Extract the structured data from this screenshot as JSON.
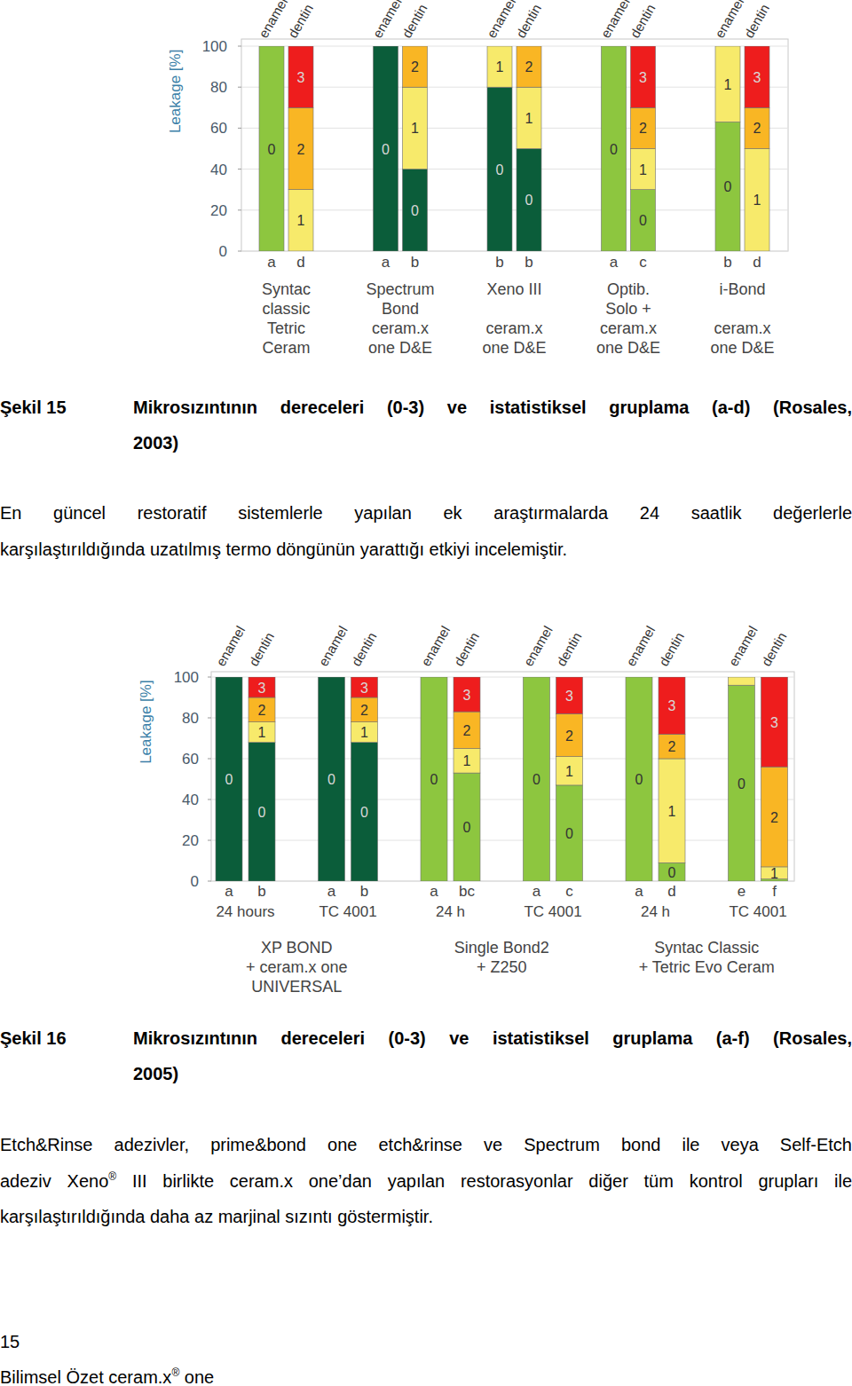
{
  "chart_data": [
    {
      "type": "bar",
      "stacked": true,
      "grid": true,
      "ylabel": "Leakage [%]",
      "ylim": [
        0,
        100
      ],
      "yticks": [
        0,
        20,
        40,
        60,
        80,
        100
      ],
      "categories": [
        "a",
        "d",
        "a",
        "b",
        "b",
        "b",
        "a",
        "c",
        "b",
        "d"
      ],
      "bar_labels": [
        "enamel",
        "dentin",
        "enamel",
        "dentin",
        "enamel",
        "dentin",
        "enamel",
        "dentin",
        "enamel",
        "dentin"
      ],
      "groups": [
        {
          "lines": [
            "Syntac",
            "classic",
            "Tetric",
            "Ceram"
          ],
          "size": 2
        },
        {
          "lines": [
            "Spectrum",
            "Bond",
            "ceram.x",
            "one D&E"
          ],
          "size": 2
        },
        {
          "lines": [
            "Xeno III",
            "",
            "ceram.x",
            "one D&E"
          ],
          "size": 2
        },
        {
          "lines": [
            "Optib.",
            "Solo +",
            "ceram.x",
            "one D&E"
          ],
          "size": 2
        },
        {
          "lines": [
            "i-Bond",
            "",
            "ceram.x",
            "one D&E"
          ],
          "size": 2
        }
      ],
      "series": [
        {
          "name": "0",
          "colors": [
            "#8dc63f",
            "#8dc63f",
            "#0b5d3a",
            "#0b5d3a",
            "#0b5d3a",
            "#0b5d3a",
            "#8dc63f",
            "#8dc63f",
            "#8dc63f",
            "#8dc63f"
          ],
          "values": [
            100,
            0,
            100,
            40,
            80,
            50,
            100,
            30,
            63,
            0
          ]
        },
        {
          "name": "1",
          "color": "#f7ea6b",
          "values": [
            0,
            30,
            0,
            40,
            20,
            30,
            0,
            20,
            37,
            50
          ]
        },
        {
          "name": "2",
          "color": "#f9b624",
          "values": [
            0,
            40,
            0,
            20,
            0,
            20,
            0,
            20,
            0,
            20
          ]
        },
        {
          "name": "3",
          "color": "#ee1d1d",
          "values": [
            0,
            30,
            0,
            0,
            0,
            0,
            0,
            30,
            0,
            30
          ]
        }
      ]
    },
    {
      "type": "bar",
      "stacked": true,
      "grid": true,
      "ylabel": "Leakage [%]",
      "ylim": [
        0,
        100
      ],
      "yticks": [
        0,
        20,
        40,
        60,
        80,
        100
      ],
      "categories": [
        "a",
        "b",
        "a",
        "b",
        "a",
        "bc",
        "a",
        "c",
        "a",
        "d",
        "e",
        "f"
      ],
      "bar_labels": [
        "enamel",
        "dentin",
        "enamel",
        "dentin",
        "enamel",
        "dentin",
        "enamel",
        "dentin",
        "enamel",
        "dentin",
        "enamel",
        "dentin"
      ],
      "subgroups": [
        {
          "label": "24 hours",
          "size": 2
        },
        {
          "label": "TC 4001",
          "size": 2
        },
        {
          "label": "24 h",
          "size": 2
        },
        {
          "label": "TC 4001",
          "size": 2
        },
        {
          "label": "24 h",
          "size": 2
        },
        {
          "label": "TC 4001",
          "size": 2
        }
      ],
      "groups": [
        {
          "lines": [
            "XP BOND",
            "+ ceram.x one",
            "UNIVERSAL"
          ],
          "size": 4
        },
        {
          "lines": [
            "Single Bond2",
            "+ Z250"
          ],
          "size": 4
        },
        {
          "lines": [
            "Syntac Classic",
            "+ Tetric Evo Ceram"
          ],
          "size": 4
        }
      ],
      "series": [
        {
          "name": "0",
          "colors": [
            "#0b5d3a",
            "#0b5d3a",
            "#0b5d3a",
            "#0b5d3a",
            "#8dc63f",
            "#8dc63f",
            "#8dc63f",
            "#8dc63f",
            "#8dc63f",
            "#8dc63f",
            "#8dc63f",
            "#8dc63f"
          ],
          "values": [
            100,
            68,
            100,
            68,
            100,
            53,
            100,
            47,
            100,
            9,
            96,
            1
          ]
        },
        {
          "name": "1",
          "color": "#f7ea6b",
          "values": [
            0,
            10,
            0,
            10,
            0,
            12,
            0,
            14,
            0,
            51,
            4,
            6
          ]
        },
        {
          "name": "2",
          "color": "#f9b624",
          "values": [
            0,
            12,
            0,
            12,
            0,
            18,
            0,
            21,
            0,
            12,
            0,
            49
          ]
        },
        {
          "name": "3",
          "color": "#ee1d1d",
          "values": [
            0,
            10,
            0,
            10,
            0,
            17,
            0,
            18,
            0,
            28,
            0,
            44
          ]
        }
      ]
    }
  ],
  "document": {
    "captions": [
      {
        "label": "Şekil 15",
        "lines": [
          "Mikrosızıntının dereceleri (0-3) ve istatistiksel gruplama (a-d) (Rosales,",
          "2003)"
        ]
      },
      {
        "label": "Şekil 16",
        "lines": [
          "Mikrosızıntının dereceleri (0-3) ve istatistiksel gruplama (a-f) (Rosales,",
          "2005)"
        ]
      }
    ],
    "paragraphs": [
      {
        "lines": [
          [
            "En güncel restoratif sistemlerle yapılan ek araştırmalarda 24 saatlik değerlerle"
          ],
          [
            "karşılaştırıldığında uzatılmış termo döngünün yarattığı etkiyi incelemiştir."
          ]
        ]
      },
      {
        "lines": [
          [
            "Etch&Rinse adezivler, prime&bond one etch&rinse ve Spectrum bond ile veya Self-Etch"
          ],
          [
            "adeziv Xeno",
            {
              "sup": "®"
            },
            "III birlikte ceram.x one’dan yapılan restorasyonlar diğer tüm kontrol grupları ile"
          ],
          [
            "karşılaştırıldığında daha az marjinal sızıntı göstermiştir."
          ]
        ]
      }
    ],
    "footer": {
      "page_number": "15",
      "title": [
        "Bilimsel Özet ceram.x",
        {
          "sup": "®"
        },
        "one"
      ]
    }
  }
}
